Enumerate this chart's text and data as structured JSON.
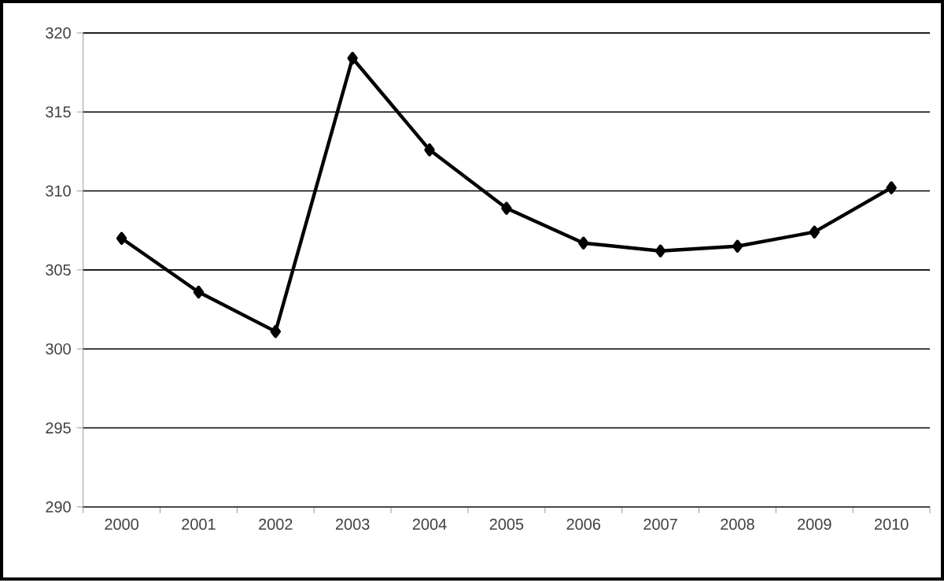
{
  "chart_data": {
    "type": "line",
    "categories": [
      "2000",
      "2001",
      "2002",
      "2003",
      "2004",
      "2005",
      "2006",
      "2007",
      "2008",
      "2009",
      "2010"
    ],
    "series": [
      {
        "color": "#000000",
        "values": [
          307.0,
          303.6,
          301.1,
          318.4,
          312.6,
          308.9,
          306.7,
          306.2,
          306.5,
          307.4,
          310.2
        ]
      }
    ],
    "ylim": [
      290,
      320
    ],
    "yticks": [
      290,
      295,
      300,
      305,
      310,
      315,
      320
    ],
    "grid": "y",
    "marker": "diamond",
    "line_style": "solid"
  }
}
